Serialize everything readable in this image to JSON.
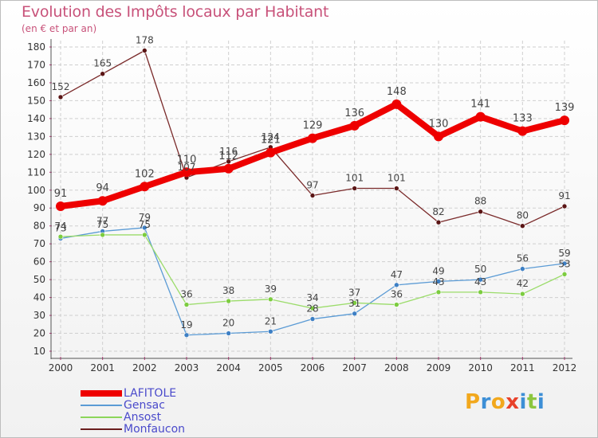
{
  "chart_data": {
    "type": "line",
    "title": "Evolution des Impôts locaux par Habitant",
    "subtitle": "(en € et par an)",
    "xlabel": "",
    "ylabel": "",
    "ylim": [
      10,
      180
    ],
    "y_ticks": [
      10,
      20,
      30,
      40,
      50,
      60,
      70,
      80,
      90,
      100,
      110,
      120,
      130,
      140,
      150,
      160,
      170,
      180
    ],
    "grid": true,
    "x": [
      "2000",
      "2001",
      "2002",
      "2003",
      "2004",
      "2005",
      "2006",
      "2007",
      "2008",
      "2009",
      "2010",
      "2011",
      "2012"
    ],
    "series": [
      {
        "name": "Monfaucon",
        "color": "#6b1e1e",
        "values": [
          152,
          165,
          178,
          107,
          116,
          124,
          97,
          101,
          101,
          82,
          88,
          80,
          91
        ]
      },
      {
        "name": "Gensac",
        "color": "#5b9bd5",
        "values": [
          73,
          77,
          79,
          19,
          20,
          21,
          28,
          31,
          47,
          49,
          50,
          56,
          59
        ]
      },
      {
        "name": "Ansost",
        "color": "#8cd65a",
        "values": [
          74,
          75,
          75,
          36,
          38,
          39,
          34,
          37,
          36,
          43,
          43,
          42,
          53
        ]
      },
      {
        "name": "LAFITOLE",
        "color": "#ee0000",
        "values": [
          91,
          94,
          102,
          110,
          112,
          121,
          129,
          136,
          148,
          130,
          141,
          133,
          139
        ]
      }
    ],
    "legend_order": [
      "LAFITOLE",
      "Gensac",
      "Ansost",
      "Monfaucon"
    ],
    "legend_position": "bottom-left"
  },
  "logo": {
    "text": "Proxiti",
    "letters": [
      "P",
      "r",
      "o",
      "x",
      "i",
      "t",
      "i"
    ],
    "colors": [
      "#f2a81d",
      "#3d8fd6",
      "#f2a81d",
      "#e8422b",
      "#3d8fd6",
      "#8cc63f",
      "#3d8fd6"
    ]
  }
}
